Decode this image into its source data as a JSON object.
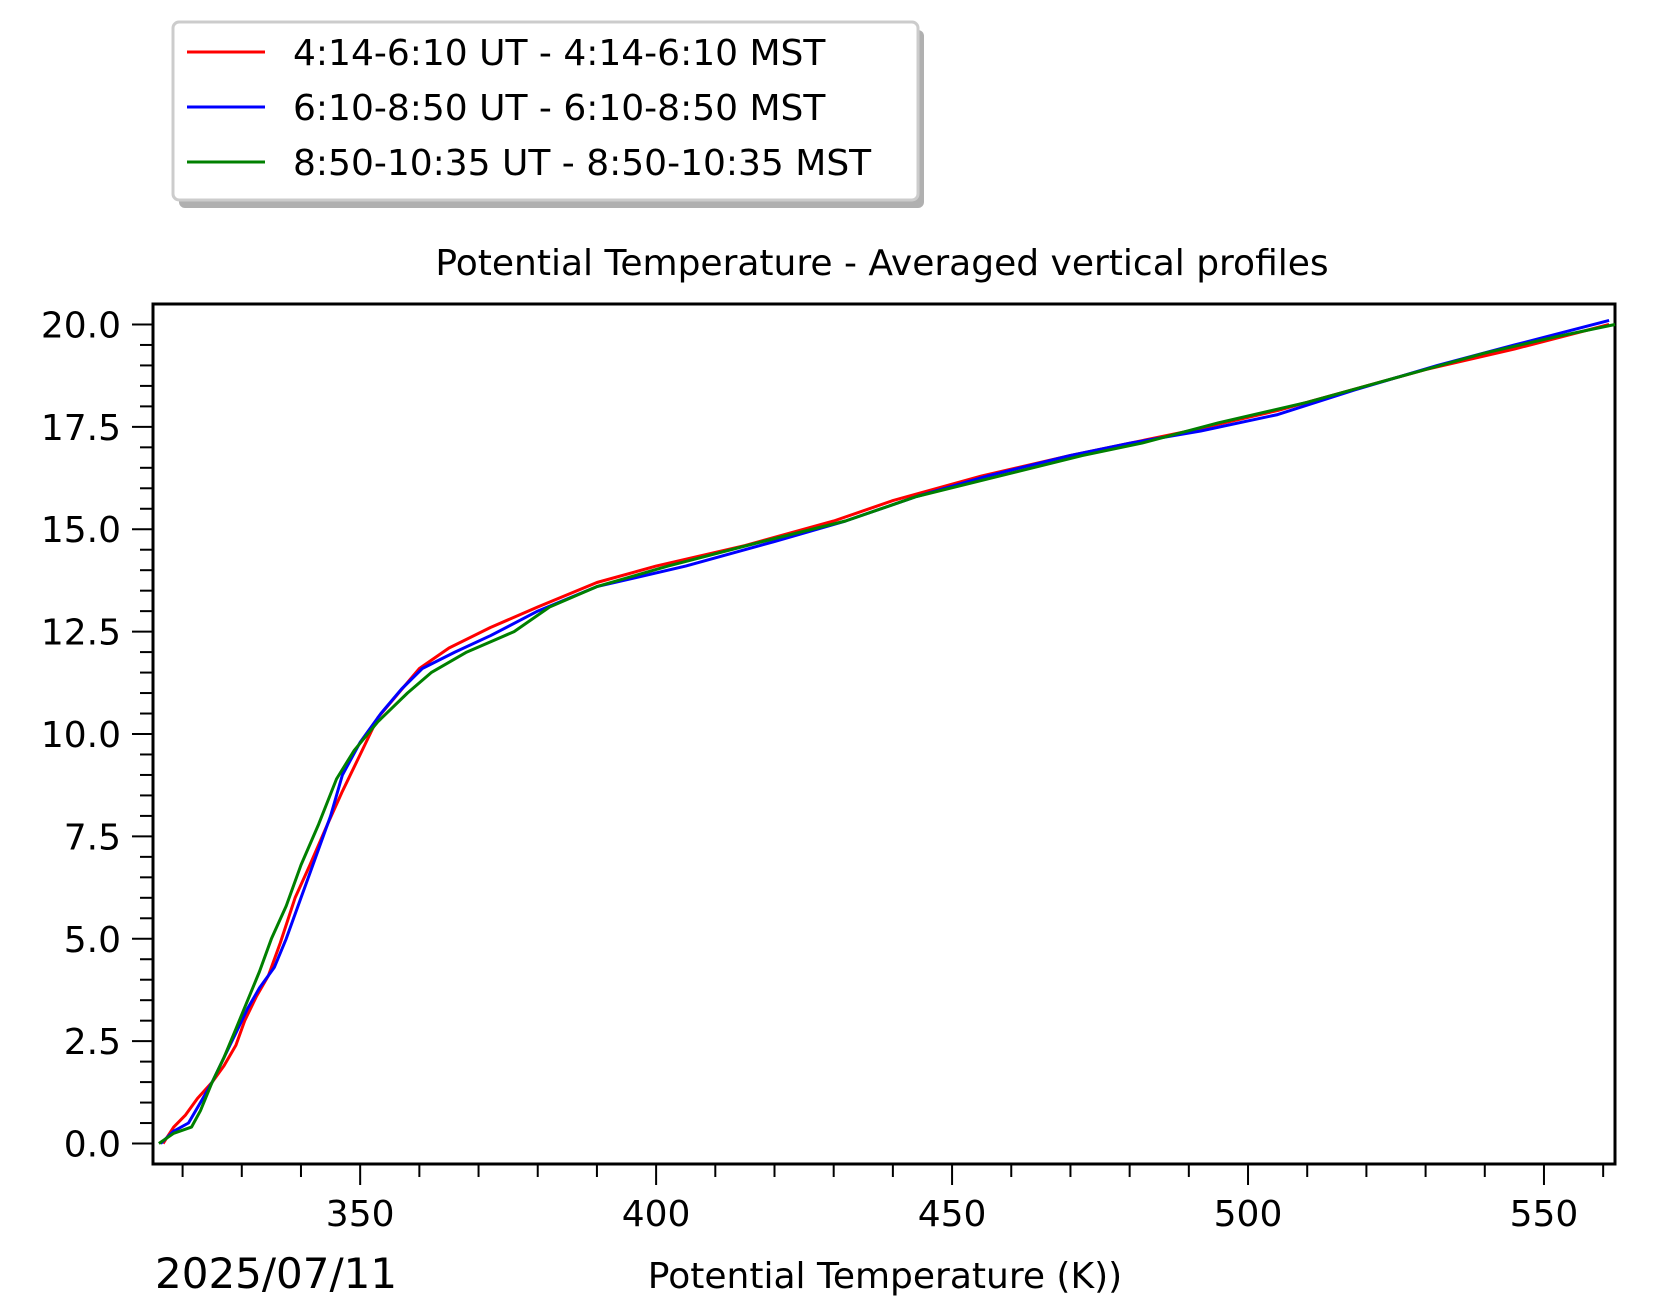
{
  "chart_data": {
    "type": "line",
    "title": "Potential Temperature - Averaged vertical profiles",
    "xlabel": "Potential Temperature (K))",
    "date_label": "2025/07/11",
    "xlim": [
      315,
      562
    ],
    "ylim": [
      -0.5,
      20.5
    ],
    "x_ticks": [
      350,
      400,
      450,
      500,
      550
    ],
    "x_tick_labels": [
      "350",
      "400",
      "450",
      "500",
      "550"
    ],
    "y_ticks": [
      0.0,
      2.5,
      5.0,
      7.5,
      10.0,
      12.5,
      15.0,
      17.5,
      20.0
    ],
    "y_tick_labels": [
      "0.0",
      "2.5",
      "5.0",
      "7.5",
      "10.0",
      "12.5",
      "15.0",
      "17.5",
      "20.0"
    ],
    "legend_position": "top-left, above plot",
    "grid": false,
    "series": [
      {
        "name": "4:14-6:10 UT - 4:14-6:10 MST",
        "color": "#ff0000",
        "points": [
          [
            316.7,
            0.0
          ],
          [
            318.5,
            0.4
          ],
          [
            320.5,
            0.7
          ],
          [
            322.5,
            1.1
          ],
          [
            325,
            1.5
          ],
          [
            327,
            1.9
          ],
          [
            329,
            2.4
          ],
          [
            330.5,
            3.0
          ],
          [
            332.5,
            3.6
          ],
          [
            334.5,
            4.1
          ],
          [
            336.5,
            4.9
          ],
          [
            339,
            6.0
          ],
          [
            341.5,
            6.8
          ],
          [
            344.5,
            7.8
          ],
          [
            347,
            8.6
          ],
          [
            350,
            9.5
          ],
          [
            353,
            10.4
          ],
          [
            356.5,
            11.0
          ],
          [
            360,
            11.6
          ],
          [
            365,
            12.1
          ],
          [
            372,
            12.6
          ],
          [
            380,
            13.1
          ],
          [
            390,
            13.7
          ],
          [
            400,
            14.1
          ],
          [
            415,
            14.6
          ],
          [
            430,
            15.2
          ],
          [
            440,
            15.7
          ],
          [
            455,
            16.3
          ],
          [
            470,
            16.8
          ],
          [
            480,
            17.1
          ],
          [
            490,
            17.4
          ],
          [
            505,
            17.9
          ],
          [
            515,
            18.3
          ],
          [
            530,
            18.9
          ],
          [
            545,
            19.4
          ],
          [
            561,
            20.0
          ]
        ]
      },
      {
        "name": "6:10-8:50 UT - 6:10-8:50 MST",
        "color": "#0000ff",
        "points": [
          [
            316.3,
            0.0
          ],
          [
            318.5,
            0.3
          ],
          [
            321,
            0.5
          ],
          [
            323,
            1.0
          ],
          [
            325,
            1.5
          ],
          [
            327,
            2.1
          ],
          [
            329,
            2.7
          ],
          [
            331,
            3.3
          ],
          [
            333,
            3.8
          ],
          [
            335.5,
            4.3
          ],
          [
            337.5,
            5.0
          ],
          [
            340,
            6.0
          ],
          [
            342.5,
            7.0
          ],
          [
            345,
            8.0
          ],
          [
            347,
            9.0
          ],
          [
            350,
            9.8
          ],
          [
            353.5,
            10.5
          ],
          [
            357,
            11.1
          ],
          [
            360.5,
            11.6
          ],
          [
            366,
            12.0
          ],
          [
            372,
            12.4
          ],
          [
            380,
            13.0
          ],
          [
            390,
            13.6
          ],
          [
            405,
            14.1
          ],
          [
            420,
            14.7
          ],
          [
            432,
            15.2
          ],
          [
            444,
            15.8
          ],
          [
            456,
            16.3
          ],
          [
            470,
            16.8
          ],
          [
            480,
            17.1
          ],
          [
            492,
            17.4
          ],
          [
            505,
            17.8
          ],
          [
            518,
            18.4
          ],
          [
            532,
            19.0
          ],
          [
            545,
            19.5
          ],
          [
            561,
            20.1
          ]
        ]
      },
      {
        "name": "8:50-10:35 UT - 8:50-10:35 MST",
        "color": "#008000",
        "points": [
          [
            316.0,
            0.0
          ],
          [
            318.5,
            0.25
          ],
          [
            321.5,
            0.4
          ],
          [
            323,
            0.8
          ],
          [
            325,
            1.5
          ],
          [
            327,
            2.1
          ],
          [
            329,
            2.8
          ],
          [
            331,
            3.5
          ],
          [
            333,
            4.2
          ],
          [
            335,
            5.0
          ],
          [
            337.5,
            5.8
          ],
          [
            340,
            6.8
          ],
          [
            343,
            7.8
          ],
          [
            346,
            8.9
          ],
          [
            349,
            9.6
          ],
          [
            353,
            10.3
          ],
          [
            358,
            11.0
          ],
          [
            362,
            11.5
          ],
          [
            368,
            12.0
          ],
          [
            376,
            12.5
          ],
          [
            382,
            13.1
          ],
          [
            390,
            13.6
          ],
          [
            402,
            14.1
          ],
          [
            418,
            14.7
          ],
          [
            432,
            15.2
          ],
          [
            444,
            15.8
          ],
          [
            458,
            16.3
          ],
          [
            472,
            16.8
          ],
          [
            482,
            17.1
          ],
          [
            495,
            17.6
          ],
          [
            510,
            18.1
          ],
          [
            525,
            18.7
          ],
          [
            540,
            19.3
          ],
          [
            552,
            19.7
          ],
          [
            562,
            20.0
          ]
        ]
      }
    ]
  }
}
